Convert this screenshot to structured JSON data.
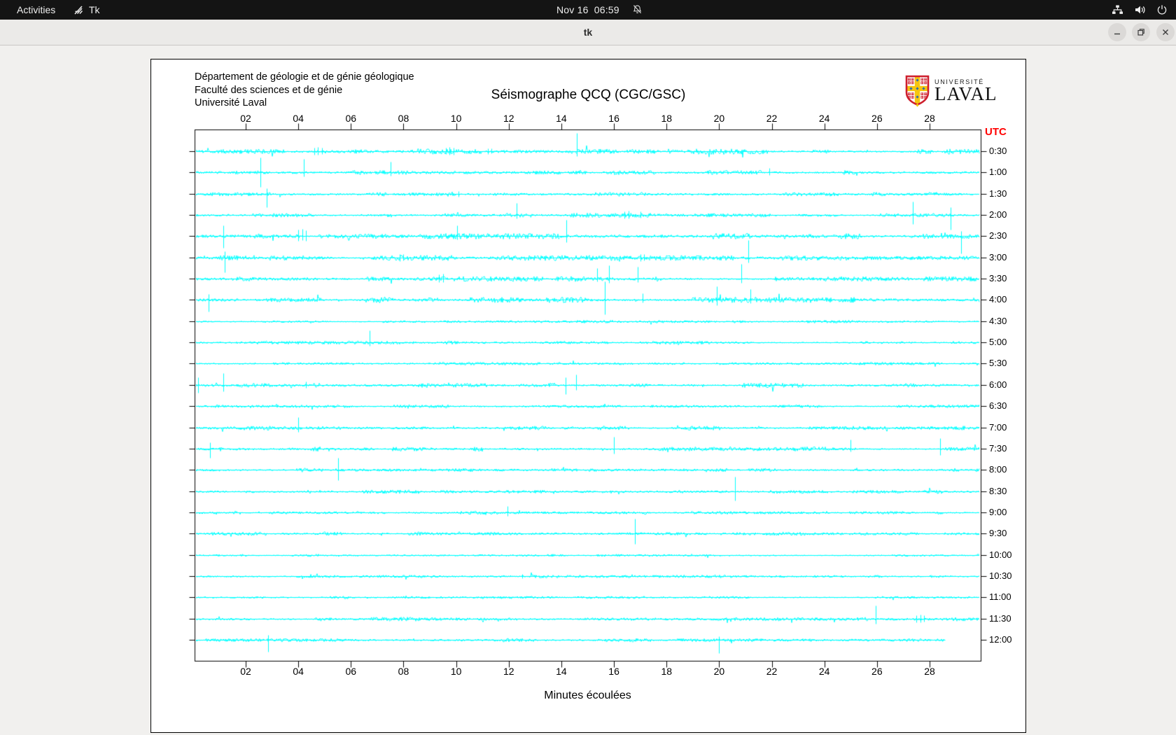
{
  "topbar": {
    "activities_label": "Activities",
    "app_indicator": "Tk",
    "clock": "Nov 16  06:59"
  },
  "titlebar": {
    "title": "tk"
  },
  "canvas": {
    "header_lines": [
      "Département de géologie et de génie géologique",
      "Faculté des sciences et de génie",
      "Université Laval"
    ],
    "logo": {
      "line1": "UNIVERSITÉ",
      "line2": "LAVAL"
    },
    "utc_label": "UTC",
    "colors": {
      "trace": "#00ffff",
      "utc_label": "#ff0000",
      "axis": "#000000"
    }
  },
  "chart_data": {
    "type": "line",
    "title": "Séismographe QCQ (CGC/GSC)",
    "xlabel": "Minutes écoulées",
    "x_ticks": [
      "02",
      "04",
      "06",
      "08",
      "10",
      "12",
      "14",
      "16",
      "18",
      "20",
      "22",
      "24",
      "26",
      "28"
    ],
    "x_range_minutes": [
      0,
      30
    ],
    "row_duration_minutes": 30,
    "trace_color": "#00ffff",
    "rows": [
      {
        "label": "0:30",
        "amp": 2.0,
        "spikes": [
          [
            4.6,
            5,
            5
          ],
          [
            4.75,
            6,
            5
          ],
          [
            4.9,
            5,
            4
          ],
          [
            9.6,
            5,
            4
          ],
          [
            9.75,
            6,
            5
          ],
          [
            9.9,
            5,
            5
          ],
          [
            11.2,
            4,
            4
          ],
          [
            11.35,
            4,
            3
          ],
          [
            14.6,
            26,
            7
          ]
        ]
      },
      {
        "label": "1:00",
        "amp": 1.6,
        "spikes": [
          [
            2.55,
            21,
            21
          ],
          [
            4.2,
            19,
            6
          ],
          [
            7.5,
            15,
            5
          ],
          [
            21.9,
            6,
            4
          ]
        ]
      },
      {
        "label": "1:30",
        "amp": 1.4,
        "spikes": [
          [
            2.8,
            8,
            19
          ],
          [
            10.1,
            4,
            4
          ]
        ]
      },
      {
        "label": "2:00",
        "amp": 1.6,
        "spikes": [
          [
            12.3,
            17,
            5
          ],
          [
            16.4,
            5,
            5
          ],
          [
            16.55,
            6,
            5
          ],
          [
            17.0,
            5,
            4
          ],
          [
            27.35,
            19,
            13
          ],
          [
            28.8,
            11,
            21
          ]
        ]
      },
      {
        "label": "2:30",
        "amp": 2.0,
        "spikes": [
          [
            1.15,
            15,
            17
          ],
          [
            4.0,
            9,
            7
          ],
          [
            4.15,
            10,
            6
          ],
          [
            4.3,
            8,
            7
          ],
          [
            10.05,
            15,
            5
          ],
          [
            14.2,
            23,
            9
          ],
          [
            29.2,
            7,
            25
          ]
        ]
      },
      {
        "label": "3:00",
        "amp": 1.8,
        "spikes": [
          [
            1.2,
            9,
            21
          ],
          [
            7.85,
            5,
            5
          ],
          [
            8.0,
            5,
            4
          ],
          [
            17.0,
            5,
            5
          ],
          [
            17.15,
            5,
            4
          ],
          [
            21.1,
            25,
            7
          ]
        ]
      },
      {
        "label": "3:30",
        "amp": 1.8,
        "spikes": [
          [
            9.35,
            6,
            5
          ],
          [
            9.5,
            7,
            5
          ],
          [
            15.35,
            15,
            4
          ],
          [
            15.8,
            19,
            6
          ],
          [
            16.9,
            17,
            5
          ],
          [
            20.85,
            21,
            6
          ]
        ]
      },
      {
        "label": "4:00",
        "amp": 2.0,
        "spikes": [
          [
            0.6,
            8,
            17
          ],
          [
            15.65,
            26,
            21
          ],
          [
            17.1,
            9,
            4
          ],
          [
            19.9,
            19,
            8
          ],
          [
            21.2,
            15,
            5
          ]
        ]
      },
      {
        "label": "4:30",
        "amp": 1.0,
        "spikes": []
      },
      {
        "label": "5:00",
        "amp": 1.2,
        "spikes": [
          [
            6.7,
            17,
            5
          ]
        ]
      },
      {
        "label": "5:30",
        "amp": 1.0,
        "spikes": []
      },
      {
        "label": "6:00",
        "amp": 1.8,
        "spikes": [
          [
            0.2,
            11,
            11
          ],
          [
            1.15,
            17,
            9
          ],
          [
            4.3,
            5,
            4
          ],
          [
            14.15,
            11,
            13
          ],
          [
            14.55,
            15,
            7
          ]
        ]
      },
      {
        "label": "6:30",
        "amp": 1.1,
        "spikes": []
      },
      {
        "label": "7:00",
        "amp": 1.4,
        "spikes": [
          [
            4.0,
            15,
            6
          ]
        ]
      },
      {
        "label": "7:30",
        "amp": 1.6,
        "spikes": [
          [
            0.65,
            9,
            13
          ],
          [
            16.0,
            17,
            7
          ],
          [
            25.0,
            13,
            4
          ],
          [
            28.4,
            15,
            9
          ]
        ]
      },
      {
        "label": "8:00",
        "amp": 1.4,
        "spikes": [
          [
            5.5,
            17,
            15
          ]
        ]
      },
      {
        "label": "8:30",
        "amp": 1.3,
        "spikes": [
          [
            20.6,
            21,
            13
          ]
        ]
      },
      {
        "label": "9:00",
        "amp": 1.2,
        "spikes": [
          [
            11.95,
            9,
            5
          ]
        ]
      },
      {
        "label": "9:30",
        "amp": 1.3,
        "spikes": [
          [
            16.8,
            21,
            15
          ]
        ]
      },
      {
        "label": "10:00",
        "amp": 0.9,
        "spikes": []
      },
      {
        "label": "10:30",
        "amp": 1.1,
        "spikes": [
          [
            12.5,
            3,
            3
          ]
        ]
      },
      {
        "label": "11:00",
        "amp": 0.9,
        "spikes": []
      },
      {
        "label": "11:30",
        "amp": 1.4,
        "spikes": [
          [
            25.95,
            19,
            7
          ],
          [
            27.5,
            5,
            5
          ],
          [
            27.65,
            6,
            5
          ],
          [
            27.8,
            5,
            4
          ]
        ]
      },
      {
        "label": "12:00",
        "amp": 1.3,
        "end": 28.6,
        "spikes": [
          [
            2.85,
            7,
            17
          ],
          [
            20.0,
            5,
            19
          ]
        ]
      }
    ]
  }
}
